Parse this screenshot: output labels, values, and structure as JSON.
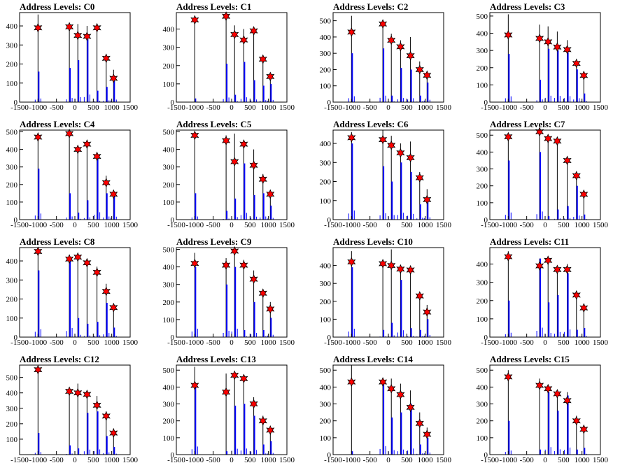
{
  "axis": {
    "xlim": [
      -1500,
      1500
    ],
    "xticks": [
      "-1500",
      "-1000",
      "-500",
      "0",
      "500",
      "1000",
      "1500"
    ]
  },
  "levels_x": [
    -1000,
    -150,
    80,
    330,
    600,
    850,
    1050
  ],
  "colors": {
    "bar": "#0000ff",
    "marker": "#ff0000",
    "axes": "#000000"
  },
  "chart_data": [
    {
      "type": "bar",
      "title": "Address Levels: C0",
      "ylim": [
        0,
        470
      ],
      "yticks": [
        0,
        100,
        200,
        300,
        400
      ],
      "markers": [
        390,
        395,
        350,
        345,
        390,
        230,
        125
      ],
      "black_peaks": [
        460,
        400,
        410,
        400,
        400,
        240,
        170
      ],
      "blue_peaks": [
        160,
        180,
        220,
        330,
        60,
        80,
        110
      ]
    },
    {
      "type": "bar",
      "title": "Address Levels: C1",
      "ylim": [
        0,
        490
      ],
      "yticks": [
        0,
        100,
        200,
        300,
        400
      ],
      "markers": [
        450,
        470,
        370,
        340,
        390,
        235,
        140
      ],
      "black_peaks": [
        460,
        480,
        420,
        400,
        400,
        240,
        150
      ],
      "blue_peaks": [
        20,
        210,
        40,
        220,
        120,
        90,
        100
      ]
    },
    {
      "type": "bar",
      "title": "Address Levels: C2",
      "ylim": [
        0,
        550
      ],
      "yticks": [
        0,
        100,
        200,
        300,
        400,
        500
      ],
      "markers": [
        430,
        480,
        380,
        340,
        285,
        200,
        165
      ],
      "black_peaks": [
        530,
        490,
        420,
        380,
        400,
        250,
        180
      ],
      "blue_peaks": [
        300,
        330,
        40,
        210,
        200,
        40,
        120
      ]
    },
    {
      "type": "bar",
      "title": "Address Levels: C3",
      "ylim": [
        0,
        520
      ],
      "yticks": [
        0,
        100,
        200,
        300,
        400,
        500
      ],
      "markers": [
        390,
        370,
        350,
        320,
        305,
        225,
        155
      ],
      "black_peaks": [
        510,
        450,
        440,
        410,
        360,
        240,
        170
      ],
      "blue_peaks": [
        280,
        130,
        310,
        300,
        290,
        190,
        50
      ]
    },
    {
      "type": "bar",
      "title": "Address Levels: C4",
      "ylim": [
        0,
        510
      ],
      "yticks": [
        0,
        100,
        200,
        300,
        400,
        500
      ],
      "markers": [
        470,
        490,
        400,
        430,
        360,
        210,
        145
      ],
      "black_peaks": [
        480,
        500,
        420,
        450,
        370,
        250,
        150
      ],
      "blue_peaks": [
        290,
        150,
        40,
        110,
        350,
        150,
        140
      ]
    },
    {
      "type": "bar",
      "title": "Address Levels: C5",
      "ylim": [
        0,
        510
      ],
      "yticks": [
        0,
        100,
        200,
        300,
        400,
        500
      ],
      "markers": [
        480,
        450,
        330,
        430,
        310,
        230,
        145
      ],
      "black_peaks": [
        500,
        480,
        490,
        450,
        400,
        260,
        170
      ],
      "blue_peaks": [
        150,
        50,
        120,
        320,
        140,
        150,
        80
      ]
    },
    {
      "type": "bar",
      "title": "Address Levels: C6",
      "ylim": [
        0,
        470
      ],
      "yticks": [
        0,
        100,
        200,
        300,
        400
      ],
      "markers": [
        430,
        420,
        390,
        350,
        325,
        220,
        105
      ],
      "black_peaks": [
        460,
        470,
        440,
        400,
        410,
        250,
        160
      ],
      "blue_peaks": [
        400,
        280,
        200,
        300,
        250,
        80,
        100
      ]
    },
    {
      "type": "bar",
      "title": "Address Levels: C7",
      "ylim": [
        0,
        530
      ],
      "yticks": [
        0,
        100,
        200,
        300,
        400,
        500
      ],
      "markers": [
        490,
        520,
        480,
        465,
        350,
        260,
        150
      ],
      "black_peaks": [
        510,
        530,
        490,
        480,
        370,
        270,
        150
      ],
      "blue_peaks": [
        350,
        400,
        20,
        60,
        80,
        200,
        30
      ]
    },
    {
      "type": "bar",
      "title": "Address Levels: C8",
      "ylim": [
        0,
        470
      ],
      "yticks": [
        0,
        100,
        200,
        300,
        400
      ],
      "markers": [
        450,
        410,
        420,
        390,
        340,
        240,
        155
      ],
      "black_peaks": [
        460,
        420,
        430,
        400,
        370,
        280,
        170
      ],
      "blue_peaks": [
        350,
        400,
        100,
        70,
        80,
        180,
        50
      ]
    },
    {
      "type": "bar",
      "title": "Address Levels: C9",
      "ylim": [
        0,
        510
      ],
      "yticks": [
        0,
        100,
        200,
        300,
        400,
        500
      ],
      "markers": [
        420,
        410,
        490,
        410,
        330,
        250,
        160
      ],
      "black_peaks": [
        480,
        450,
        500,
        440,
        380,
        270,
        200
      ],
      "blue_peaks": [
        400,
        300,
        400,
        40,
        200,
        40,
        110
      ]
    },
    {
      "type": "bar",
      "title": "Address Levels: C10",
      "ylim": [
        0,
        500
      ],
      "yticks": [
        0,
        100,
        200,
        300,
        400
      ],
      "markers": [
        420,
        410,
        400,
        380,
        375,
        230,
        140
      ],
      "black_peaks": [
        480,
        430,
        490,
        400,
        400,
        240,
        180
      ],
      "blue_peaks": [
        390,
        40,
        80,
        320,
        50,
        40,
        100
      ]
    },
    {
      "type": "bar",
      "title": "Address Levels: C11",
      "ylim": [
        0,
        490
      ],
      "yticks": [
        0,
        100,
        200,
        300,
        400
      ],
      "markers": [
        440,
        390,
        420,
        370,
        370,
        230,
        160
      ],
      "black_peaks": [
        470,
        430,
        420,
        390,
        400,
        230,
        180
      ],
      "blue_peaks": [
        200,
        430,
        190,
        230,
        350,
        40,
        50
      ]
    },
    {
      "type": "bar",
      "title": "Address Levels: C12",
      "ylim": [
        0,
        580
      ],
      "yticks": [
        100,
        200,
        300,
        400,
        500
      ],
      "markers": [
        550,
        410,
        400,
        390,
        320,
        250,
        140
      ],
      "black_peaks": [
        560,
        430,
        460,
        400,
        380,
        280,
        170
      ],
      "blue_peaks": [
        140,
        60,
        40,
        270,
        280,
        120,
        50
      ]
    },
    {
      "type": "bar",
      "title": "Address Levels: C13",
      "ylim": [
        0,
        530
      ],
      "yticks": [
        0,
        100,
        200,
        300,
        400,
        500
      ],
      "markers": [
        410,
        370,
        470,
        450,
        300,
        200,
        145
      ],
      "black_peaks": [
        520,
        480,
        480,
        460,
        340,
        230,
        150
      ],
      "blue_peaks": [
        400,
        20,
        290,
        300,
        230,
        60,
        80
      ]
    },
    {
      "type": "bar",
      "title": "Address Levels: C14",
      "ylim": [
        0,
        530
      ],
      "yticks": [
        0,
        100,
        200,
        300,
        400,
        500
      ],
      "markers": [
        430,
        430,
        390,
        355,
        280,
        185,
        120
      ],
      "black_peaks": [
        530,
        450,
        450,
        420,
        380,
        250,
        160
      ],
      "blue_peaks": [
        20,
        420,
        220,
        250,
        300,
        60,
        100
      ]
    },
    {
      "type": "bar",
      "title": "Address Levels: C15",
      "ylim": [
        0,
        530
      ],
      "yticks": [
        0,
        100,
        200,
        300,
        400,
        500
      ],
      "markers": [
        460,
        410,
        390,
        360,
        320,
        200,
        150
      ],
      "black_peaks": [
        500,
        450,
        400,
        380,
        370,
        230,
        160
      ],
      "blue_peaks": [
        200,
        30,
        370,
        260,
        350,
        30,
        40
      ]
    }
  ]
}
